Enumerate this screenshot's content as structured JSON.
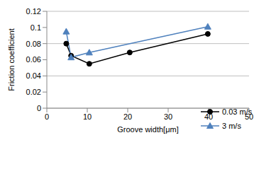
{
  "chart_data": {
    "type": "line",
    "x_label": "Groove width[μm]",
    "y_label": "Friction coefficient",
    "xlim": [
      0,
      50
    ],
    "xticks": [
      0,
      10,
      20,
      30,
      40,
      50
    ],
    "ylim": [
      0,
      0.12
    ],
    "yticks": [
      0,
      0.02,
      0.04,
      0.06,
      0.08,
      0.1,
      0.12
    ],
    "grid": true,
    "legend": "right",
    "series": [
      {
        "name": "0.03 m/s",
        "color": "#000000",
        "marker": "circle",
        "x": [
          4.8,
          6,
          10.5,
          20.5,
          39.8
        ],
        "values": [
          0.08,
          0.065,
          0.055,
          0.069,
          0.092
        ]
      },
      {
        "name": "3 m/s",
        "color": "#4f81bd",
        "marker": "triangle",
        "x": [
          4.8,
          6,
          10.5,
          39.8
        ],
        "values": [
          0.095,
          0.063,
          0.069,
          0.101
        ]
      }
    ]
  }
}
